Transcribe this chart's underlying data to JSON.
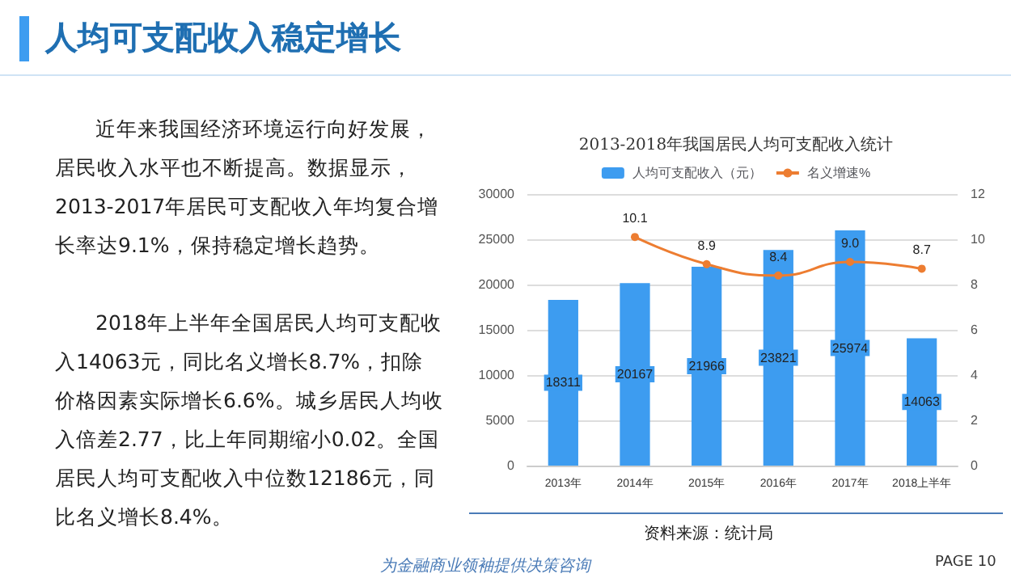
{
  "chart_data": {
    "type": "bar",
    "title": "2013-2018年我国居民人均可支配收入统计",
    "annotations": [
      "人均可支配收入稳定增长",
      "近年来我国经济环境运行向好发展，居民收入水平也不断提高。数据显示，2013-2017年居民可支配收入年均复合增长率达9.1%，保持稳定增长趋势。",
      "2018年上半年全国居民人均可支配收入14063元，同比名义增长8.7%，扣除价格因素实际增长6.6%。城乡居民人均收入倍差2.77，比上年同期缩小0.02。全国居民人均可支配收入中位数12186元，同比名义增长8.4%。",
      "资料来源：统计局",
      "为金融商业领袖提供决策咨询",
      "PAGE 10"
    ],
    "categories": [
      "2013年",
      "2014年",
      "2015年",
      "2016年",
      "2017年",
      "2018上半年"
    ],
    "series": [
      {
        "name": "人均可支配收入（元）",
        "color": "#3d9cf0",
        "values": [
          18311,
          20167,
          21966,
          23821,
          25974,
          14063
        ]
      },
      {
        "name": "名义增速%",
        "type": "line",
        "axis": "y2",
        "color": "#ed7d31",
        "values": [
          null,
          10.1,
          8.9,
          8.4,
          9.0,
          8.7
        ],
        "value_labels": [
          null,
          "10.1",
          "8.9",
          "8.4",
          "9.0",
          "8.7"
        ]
      }
    ],
    "ylim": [
      0,
      30000
    ],
    "yticks": [
      0,
      5000,
      10000,
      15000,
      20000,
      25000,
      30000
    ],
    "y2lim": [
      0,
      12
    ],
    "y2ticks": [
      0,
      2,
      4,
      6,
      8,
      10,
      12
    ],
    "grid": "y",
    "legend": "top",
    "marker": "circle",
    "data_labels": true
  }
}
